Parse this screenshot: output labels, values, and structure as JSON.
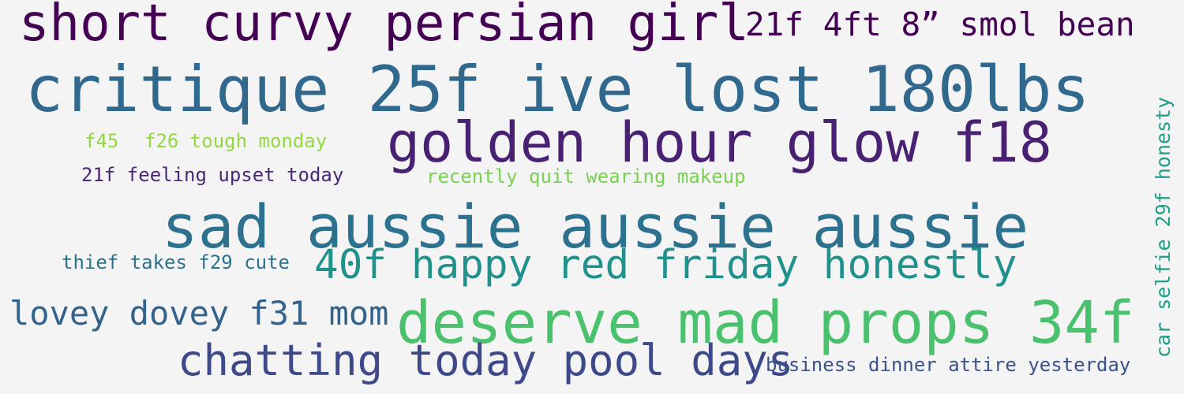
{
  "word_cloud": {
    "words": [
      {
        "text": "short curvy persian girl",
        "color": "#440154"
      },
      {
        "text": "21f 4ft 8” smol bean",
        "color": "#440154"
      },
      {
        "text": "critique 25f ive lost 180lbs",
        "color": "#31688e"
      },
      {
        "text": "golden hour glow f18",
        "color": "#482173"
      },
      {
        "text": "f45",
        "color": "#93d741"
      },
      {
        "text": "f26 tough monday",
        "color": "#93d741"
      },
      {
        "text": "21f feeling upset today",
        "color": "#482878"
      },
      {
        "text": "recently quit wearing makeup",
        "color": "#7ad151"
      },
      {
        "text": "sad aussie aussie aussie",
        "color": "#2c728e"
      },
      {
        "text": "thief takes f29 cute",
        "color": "#2c728e"
      },
      {
        "text": "40f happy red friday honestly",
        "color": "#21918c"
      },
      {
        "text": "lovey dovey f31 mom",
        "color": "#33638d"
      },
      {
        "text": "deserve mad props 34f",
        "color": "#4ac16d"
      },
      {
        "text": "chatting today pool days",
        "color": "#3e4989"
      },
      {
        "text": "business dinner attire yesterday",
        "color": "#3b528b"
      },
      {
        "text": "car selfie 29f honesty",
        "color": "#1f9e89"
      }
    ]
  }
}
